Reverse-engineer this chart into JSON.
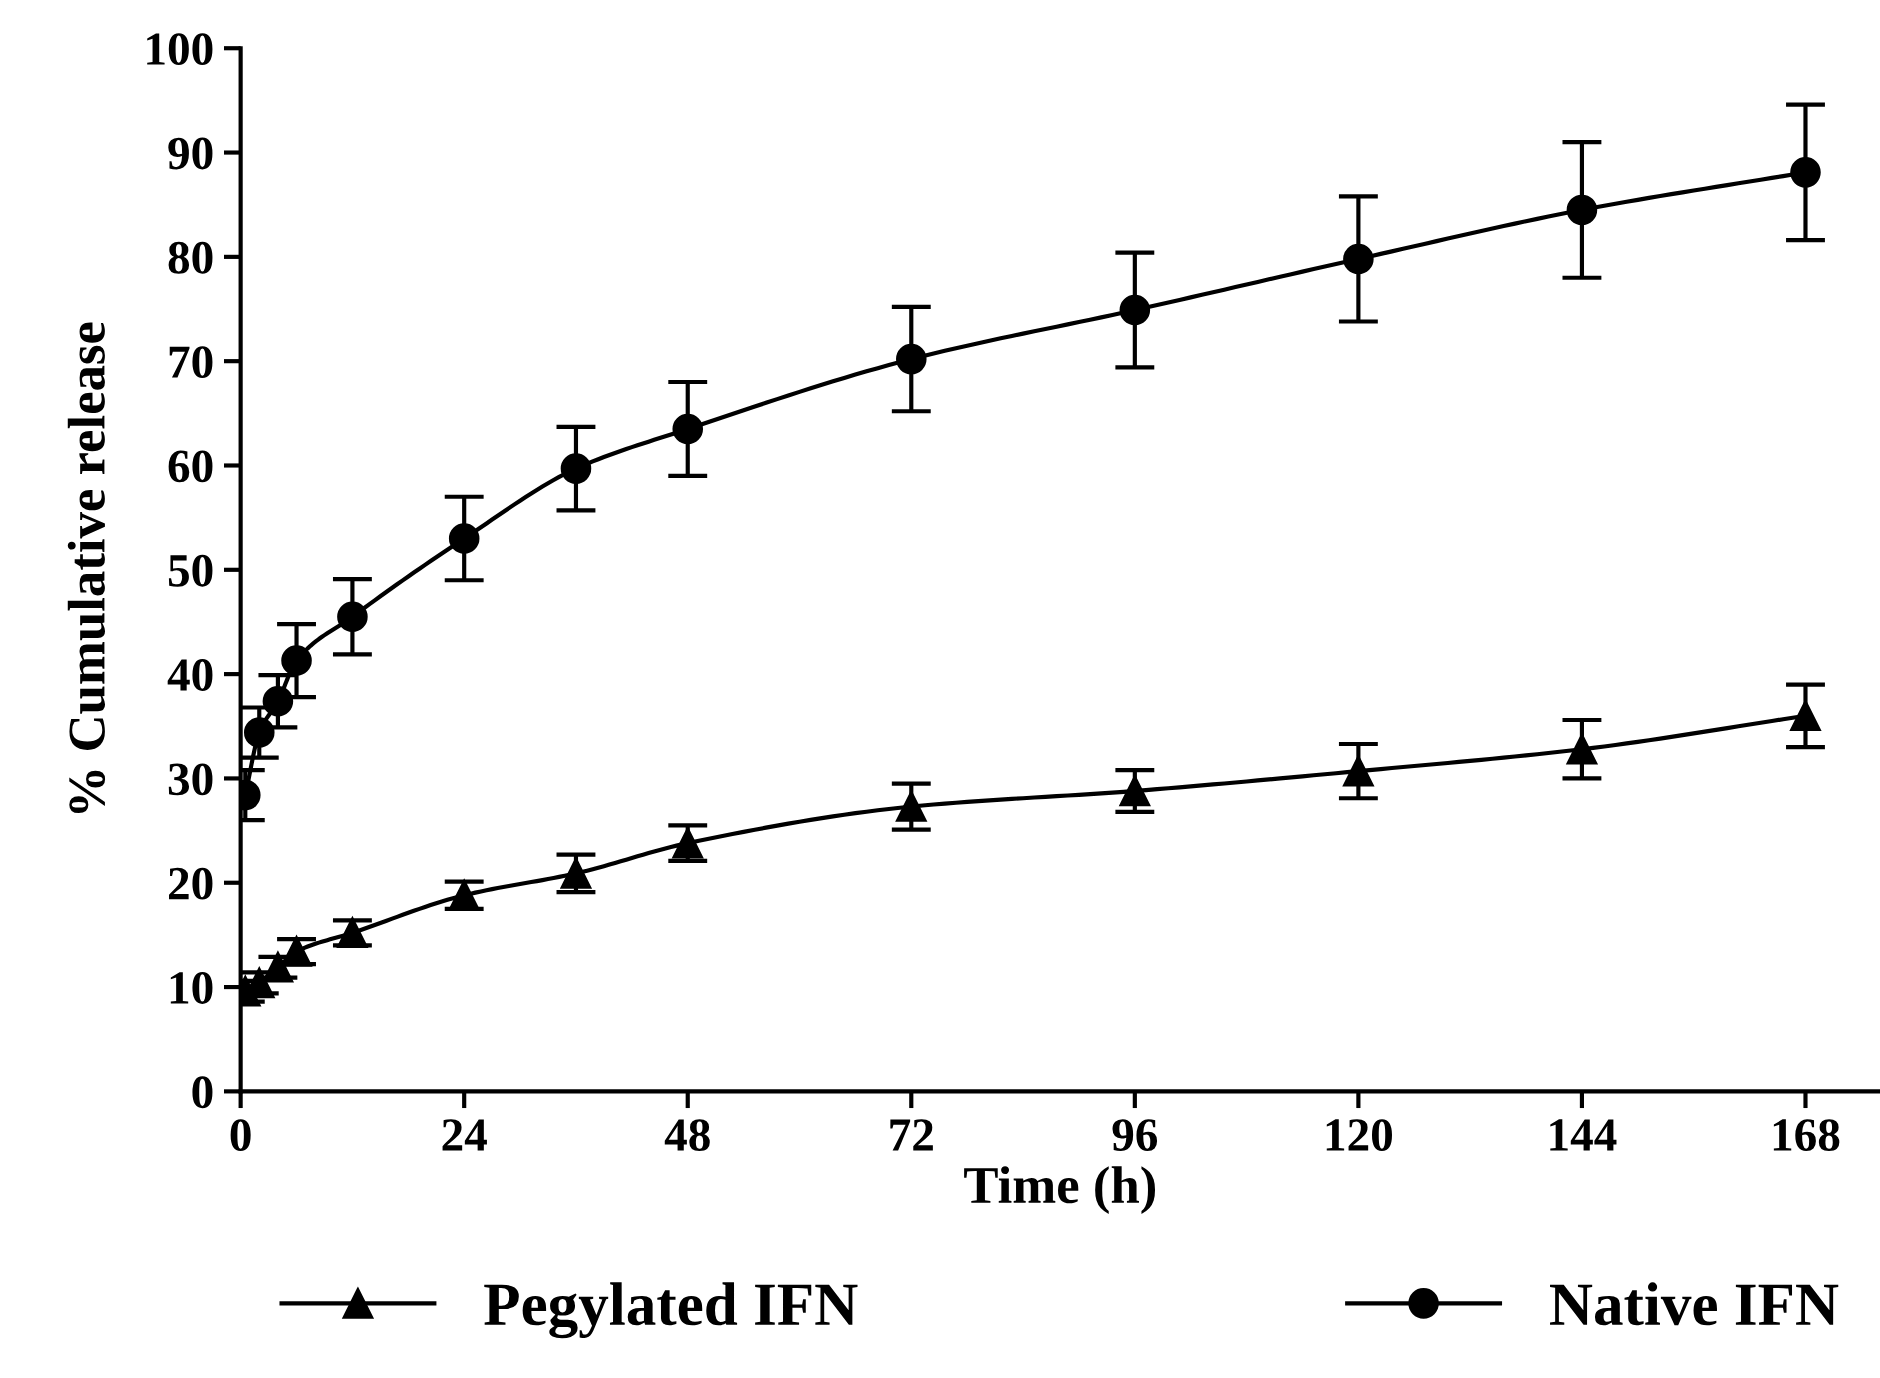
{
  "chart_data": {
    "type": "line",
    "xlabel": "Time (h)",
    "ylabel": "% Cumulative release",
    "x": [
      0.5,
      2,
      4,
      6,
      12,
      24,
      36,
      48,
      72,
      96,
      120,
      144,
      168
    ],
    "series": [
      {
        "name": "Pegylated IFN",
        "color": "#000000",
        "marker": "triangle",
        "values": [
          9.6,
          10.4,
          11.9,
          13.4,
          15.2,
          18.8,
          20.9,
          23.8,
          27.3,
          28.8,
          30.7,
          32.8,
          36.0
        ],
        "errors": [
          1,
          1,
          1,
          1.2,
          1.2,
          1.3,
          1.8,
          1.7,
          2.2,
          2,
          2.6,
          2.8,
          3
        ]
      },
      {
        "name": "Native IFN",
        "color": "#000000",
        "marker": "circle",
        "values": [
          28.4,
          34.4,
          37.4,
          41.3,
          45.5,
          53.0,
          59.7,
          63.5,
          70.2,
          74.9,
          79.8,
          84.5,
          88.1
        ],
        "errors": [
          2.4,
          2.4,
          2.5,
          3.5,
          3.6,
          4,
          4,
          4.5,
          5,
          5.5,
          6,
          6.5,
          6.5
        ]
      }
    ],
    "xlim": [
      0,
      176
    ],
    "xticks": [
      0,
      24,
      48,
      72,
      96,
      120,
      144,
      168
    ],
    "ylim": [
      0,
      100
    ],
    "yticks": [
      0,
      10,
      20,
      30,
      40,
      50,
      60,
      70,
      80,
      90,
      100
    ],
    "grid": false,
    "legend": "bottom",
    "line_style": "solid"
  }
}
